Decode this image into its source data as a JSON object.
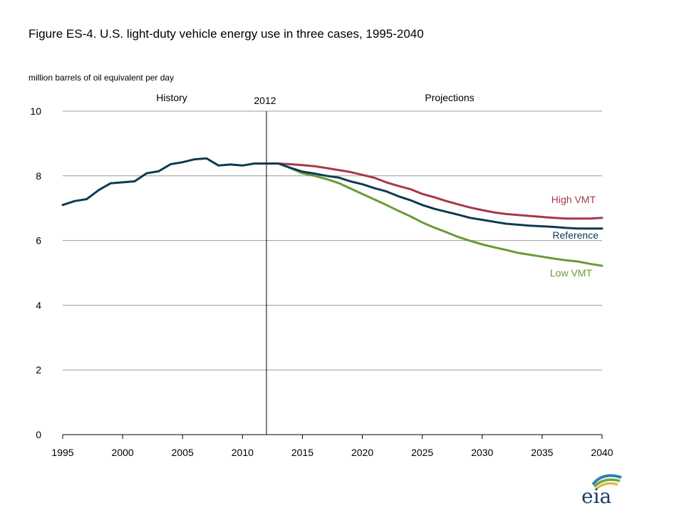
{
  "title": "Figure ES-4. U.S. light-duty vehicle energy use in three cases, 1995-2040",
  "units_label": "million barrels  of oil equivalent  per day",
  "logo_text": "eia",
  "colors": {
    "history": "#0d3a52",
    "reference": "#0d3a52",
    "high_vmt": "#a8384a",
    "low_vmt": "#6a9a35",
    "grid": "#9a9a9a",
    "axis": "#000000"
  },
  "chart_data": {
    "type": "line",
    "title": "Figure ES-4. U.S. light-duty vehicle energy use in three cases, 1995-2040",
    "ylabel": "million barrels  of oil equivalent  per day",
    "xlabel": "",
    "xlim": [
      1995,
      2040
    ],
    "ylim": [
      0,
      10
    ],
    "x_ticks": [
      1995,
      2000,
      2005,
      2010,
      2015,
      2020,
      2025,
      2030,
      2035,
      2040
    ],
    "y_ticks": [
      0,
      2,
      4,
      6,
      8,
      10
    ],
    "grid": "horizontal",
    "divider": {
      "x": 2012.0,
      "label": "2012"
    },
    "region_labels": {
      "left": "History",
      "right": "Projections"
    },
    "series": [
      {
        "key": "history",
        "x": [
          1995,
          1996,
          1997,
          1998,
          1999,
          2000,
          2001,
          2002,
          2003,
          2004,
          2005,
          2006,
          2007,
          2008,
          2009,
          2010,
          2011,
          2012,
          2013
        ],
        "y": [
          7.1,
          7.22,
          7.28,
          7.56,
          7.77,
          7.8,
          7.83,
          8.08,
          8.14,
          8.36,
          8.42,
          8.51,
          8.54,
          8.32,
          8.35,
          8.32,
          8.38,
          8.38,
          8.38
        ]
      },
      {
        "key": "high_vmt",
        "name": "High VMT",
        "x": [
          2013,
          2014,
          2015,
          2016,
          2017,
          2018,
          2019,
          2020,
          2021,
          2022,
          2023,
          2024,
          2025,
          2026,
          2027,
          2028,
          2029,
          2030,
          2031,
          2032,
          2033,
          2034,
          2035,
          2036,
          2037,
          2038,
          2039,
          2040
        ],
        "y": [
          8.38,
          8.36,
          8.33,
          8.3,
          8.24,
          8.18,
          8.12,
          8.03,
          7.94,
          7.8,
          7.69,
          7.59,
          7.44,
          7.34,
          7.22,
          7.12,
          7.02,
          6.94,
          6.87,
          6.82,
          6.79,
          6.76,
          6.73,
          6.7,
          6.68,
          6.68,
          6.68,
          6.7
        ]
      },
      {
        "key": "reference",
        "name": "Reference",
        "x": [
          2013,
          2014,
          2015,
          2016,
          2017,
          2018,
          2019,
          2020,
          2021,
          2022,
          2023,
          2024,
          2025,
          2026,
          2027,
          2028,
          2029,
          2030,
          2031,
          2032,
          2033,
          2034,
          2035,
          2036,
          2037,
          2038,
          2039,
          2040
        ],
        "y": [
          8.38,
          8.25,
          8.13,
          8.07,
          8.0,
          7.95,
          7.83,
          7.74,
          7.62,
          7.52,
          7.37,
          7.25,
          7.1,
          6.98,
          6.89,
          6.8,
          6.7,
          6.64,
          6.58,
          6.52,
          6.49,
          6.46,
          6.44,
          6.42,
          6.39,
          6.37,
          6.37,
          6.37
        ]
      },
      {
        "key": "low_vmt",
        "name": "Low VMT",
        "x": [
          2013,
          2014,
          2015,
          2016,
          2017,
          2018,
          2019,
          2020,
          2021,
          2022,
          2023,
          2024,
          2025,
          2026,
          2027,
          2028,
          2029,
          2030,
          2031,
          2032,
          2033,
          2034,
          2035,
          2036,
          2037,
          2038,
          2039,
          2040
        ],
        "y": [
          8.38,
          8.24,
          8.08,
          8.0,
          7.9,
          7.78,
          7.61,
          7.44,
          7.27,
          7.1,
          6.92,
          6.75,
          6.56,
          6.4,
          6.26,
          6.11,
          5.99,
          5.88,
          5.79,
          5.71,
          5.62,
          5.56,
          5.5,
          5.44,
          5.39,
          5.35,
          5.28,
          5.22
        ]
      }
    ]
  }
}
